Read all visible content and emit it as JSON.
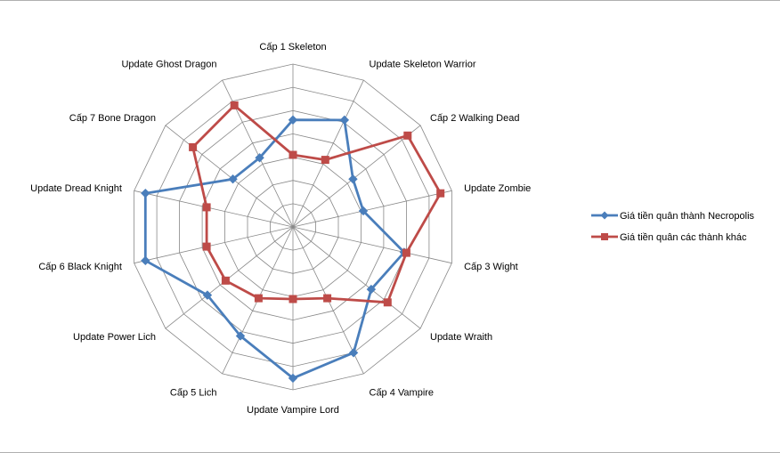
{
  "chart_data": {
    "type": "radar",
    "title": "",
    "categories": [
      "Cấp 1 Skeleton",
      "Update Skeleton Warrior",
      "Cấp 2 Walking Dead",
      "Update Zombie",
      "Cấp 3 Wight",
      "Update Wraith",
      "Cấp 4 Vampire",
      "Update Vampire Lord",
      "Cấp 5 Lich",
      "Update Power Lich",
      "Cấp 6 Black Knight",
      "Update Dread Knight",
      "Cấp 7 Bone Dragon",
      "Update Ghost Dragon"
    ],
    "rlim": [
      0,
      7
    ],
    "grid_levels": 7,
    "grid": true,
    "legend_position": "right",
    "series": [
      {
        "name": "Giá tiền quân thành Necropolis",
        "color": "#4a7ebb",
        "marker": "diamond",
        "values": [
          4.6,
          5.1,
          3.3,
          3.1,
          4.9,
          4.3,
          6.0,
          6.5,
          5.2,
          4.7,
          6.5,
          6.5,
          3.3,
          3.3
        ]
      },
      {
        "name": "Giá tiền quân các thành khác",
        "color": "#be4b48",
        "marker": "square",
        "values": [
          3.1,
          3.2,
          6.3,
          6.5,
          5.0,
          5.2,
          3.4,
          3.1,
          3.4,
          3.7,
          3.8,
          3.8,
          5.5,
          5.8
        ]
      }
    ]
  }
}
